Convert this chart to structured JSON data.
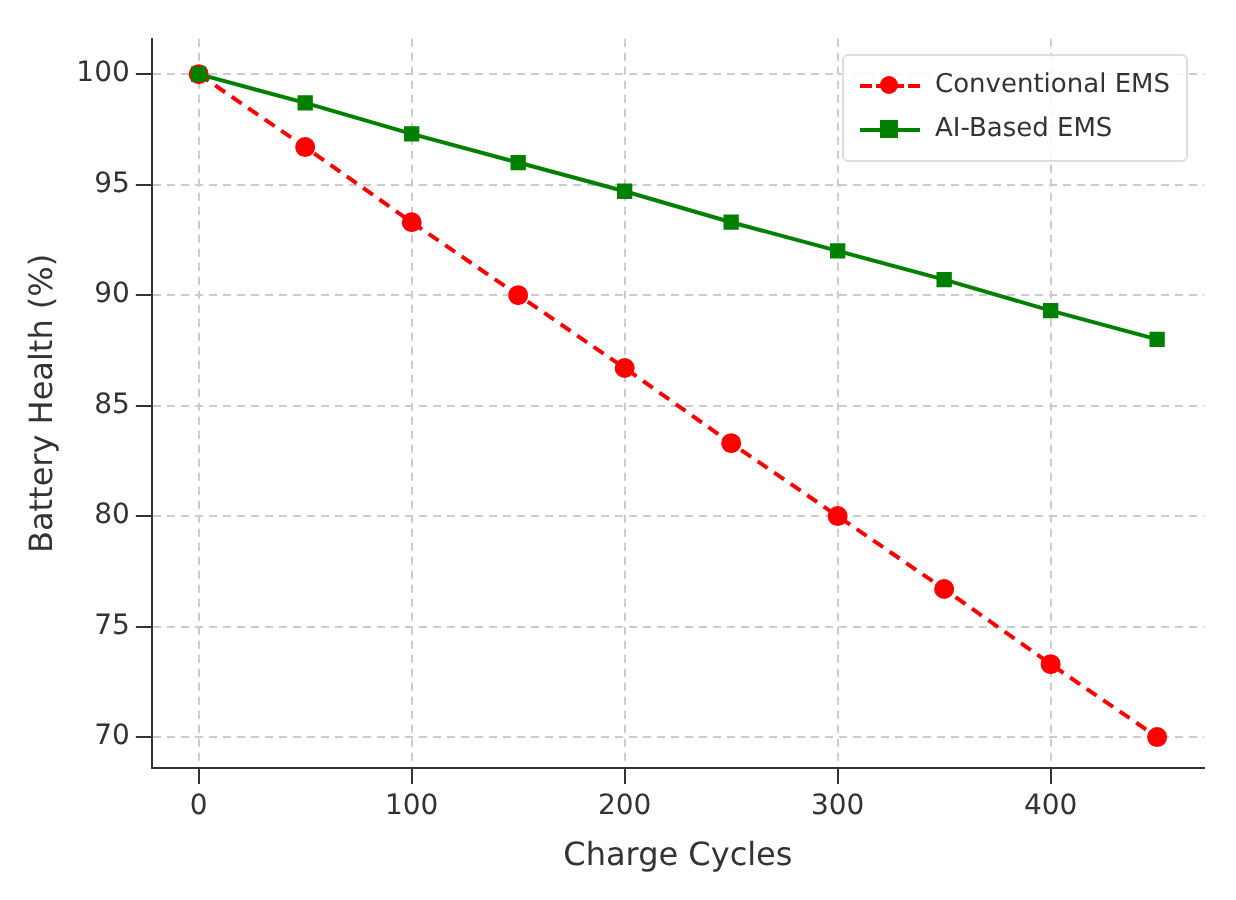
{
  "chart_data": {
    "type": "line",
    "xlabel": "Charge Cycles",
    "ylabel": "Battery Health (%)",
    "x": [
      0,
      50,
      100,
      150,
      200,
      250,
      300,
      350,
      400,
      450
    ],
    "series": [
      {
        "name": "Conventional EMS",
        "color": "#ff0000",
        "marker": "circle",
        "line_style": "dashed",
        "values": [
          100,
          96.7,
          93.3,
          90,
          86.7,
          83.3,
          80,
          76.7,
          73.3,
          70
        ]
      },
      {
        "name": "AI-Based EMS",
        "color": "#008000",
        "marker": "square",
        "line_style": "solid",
        "values": [
          100,
          98.7,
          97.3,
          96,
          94.7,
          93.3,
          92,
          90.7,
          89.3,
          88
        ]
      }
    ],
    "xlim": [
      -22,
      472
    ],
    "xticks": [
      0,
      100,
      200,
      300,
      400
    ],
    "ylim": [
      68.6,
      101.6
    ],
    "yticks": [
      70,
      75,
      80,
      85,
      90,
      95,
      100
    ],
    "grid": true,
    "legend": "top right"
  }
}
